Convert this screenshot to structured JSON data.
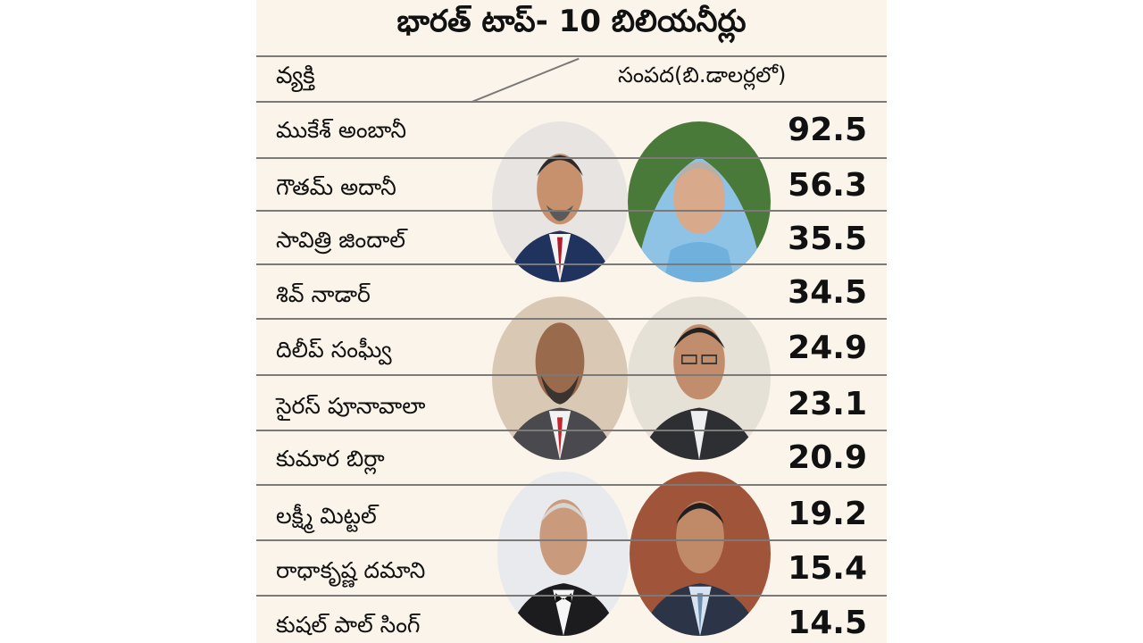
{
  "title": "భారత్ టాప్- 10 బిలియనీర్లు",
  "header": {
    "person": "వ్యక్తి",
    "wealth": "సంపద(బి.డాలర్లలో)"
  },
  "colors": {
    "panel_bg": "#fbf4ea",
    "rule": "#7c7a78",
    "text": "#111111"
  },
  "chart_data": {
    "type": "table",
    "columns": [
      "వ్యక్తి",
      "సంపద(బి.డాలర్లలో)"
    ],
    "rows": [
      {
        "name": "ముకేశ్ అంబానీ",
        "value": "92.5"
      },
      {
        "name": "గౌతమ్ అదానీ",
        "value": "56.3"
      },
      {
        "name": "సావిత్రి జిందాల్",
        "value": "35.5"
      },
      {
        "name": "శివ్ నాడార్",
        "value": "34.5"
      },
      {
        "name": "దిలీప్ సంఘ్వీ",
        "value": "24.9"
      },
      {
        "name": "సైరస్ పూనావాలా",
        "value": "23.1"
      },
      {
        "name": "కుమార బిర్లా",
        "value": "20.9"
      },
      {
        "name": "లక్ష్మీ మిట్టల్",
        "value": "19.2"
      },
      {
        "name": "రాధాకృష్ణ దమాని",
        "value": "15.4"
      },
      {
        "name": "కుషల్ పాల్ సింగ్",
        "value": "14.5"
      }
    ]
  }
}
